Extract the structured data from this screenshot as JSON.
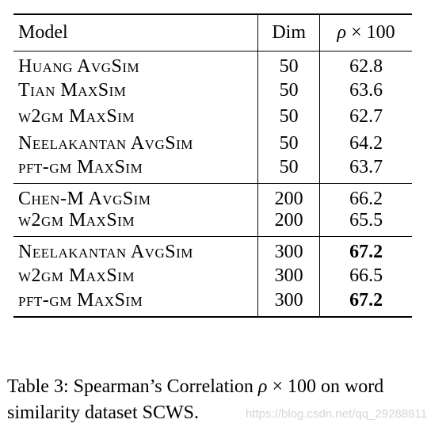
{
  "table": {
    "headers": {
      "model": "Model",
      "dim": "Dim",
      "rho_symbol": "ρ",
      "rho_rest": " × 100"
    },
    "groups": [
      [
        {
          "model": "Huang AvgSim",
          "dim": "50",
          "rho": "62.8",
          "bold": false
        },
        {
          "model": "Tian MaxSim",
          "dim": "50",
          "rho": "63.6",
          "bold": false
        },
        {
          "model": "w2gm MaxSim",
          "dim": "50",
          "rho": "62.7",
          "bold": false
        },
        {
          "model": "Neelakantan AvgSim",
          "dim": "50",
          "rho": "64.2",
          "bold": false
        },
        {
          "model": "pft-gm MaxSim",
          "dim": "50",
          "rho": "63.7",
          "bold": false
        }
      ],
      [
        {
          "model": "Chen-M AvgSim",
          "dim": "200",
          "rho": "66.2",
          "bold": false
        },
        {
          "model": "w2gm MaxSim",
          "dim": "200",
          "rho": "65.5",
          "bold": false
        }
      ],
      [
        {
          "model": "Neelakantan AvgSim",
          "dim": "300",
          "rho": "67.2",
          "bold": true
        },
        {
          "model": "w2gm MaxSim",
          "dim": "300",
          "rho": "66.5",
          "bold": false
        },
        {
          "model": "pft-gm MaxSim",
          "dim": "300",
          "rho": "67.2",
          "bold": true
        }
      ]
    ]
  },
  "caption": {
    "prefix": "Table 3: Spearman’s Correlation ",
    "rho": "ρ",
    "suffix": " × 100 on word similarity dataset SCWS."
  },
  "watermark": "https://blog.csdn.net/qq_29288811"
}
